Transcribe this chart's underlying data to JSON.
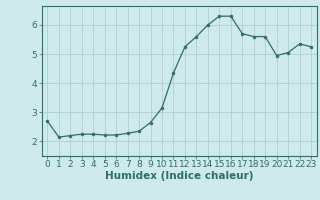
{
  "x": [
    0,
    1,
    2,
    3,
    4,
    5,
    6,
    7,
    8,
    9,
    10,
    11,
    12,
    13,
    14,
    15,
    16,
    17,
    18,
    19,
    20,
    21,
    22,
    23
  ],
  "y": [
    2.7,
    2.15,
    2.2,
    2.25,
    2.25,
    2.22,
    2.22,
    2.28,
    2.35,
    2.65,
    3.15,
    4.35,
    5.25,
    5.6,
    6.0,
    6.3,
    6.3,
    5.7,
    5.6,
    5.6,
    4.95,
    5.05,
    5.35,
    5.25
  ],
  "line_color": "#2d6e6e",
  "marker": "o",
  "marker_size": 2.0,
  "bg_color": "#ceeaea",
  "grid_color": "#aecece",
  "tick_color": "#2d6e6e",
  "xlabel": "Humidex (Indice chaleur)",
  "xlim": [
    -0.5,
    23.5
  ],
  "ylim": [
    1.5,
    6.65
  ],
  "yticks": [
    2,
    3,
    4,
    5,
    6
  ],
  "xticks": [
    0,
    1,
    2,
    3,
    4,
    5,
    6,
    7,
    8,
    9,
    10,
    11,
    12,
    13,
    14,
    15,
    16,
    17,
    18,
    19,
    20,
    21,
    22,
    23
  ],
  "font_size": 6.5,
  "label_font_size": 7.5
}
